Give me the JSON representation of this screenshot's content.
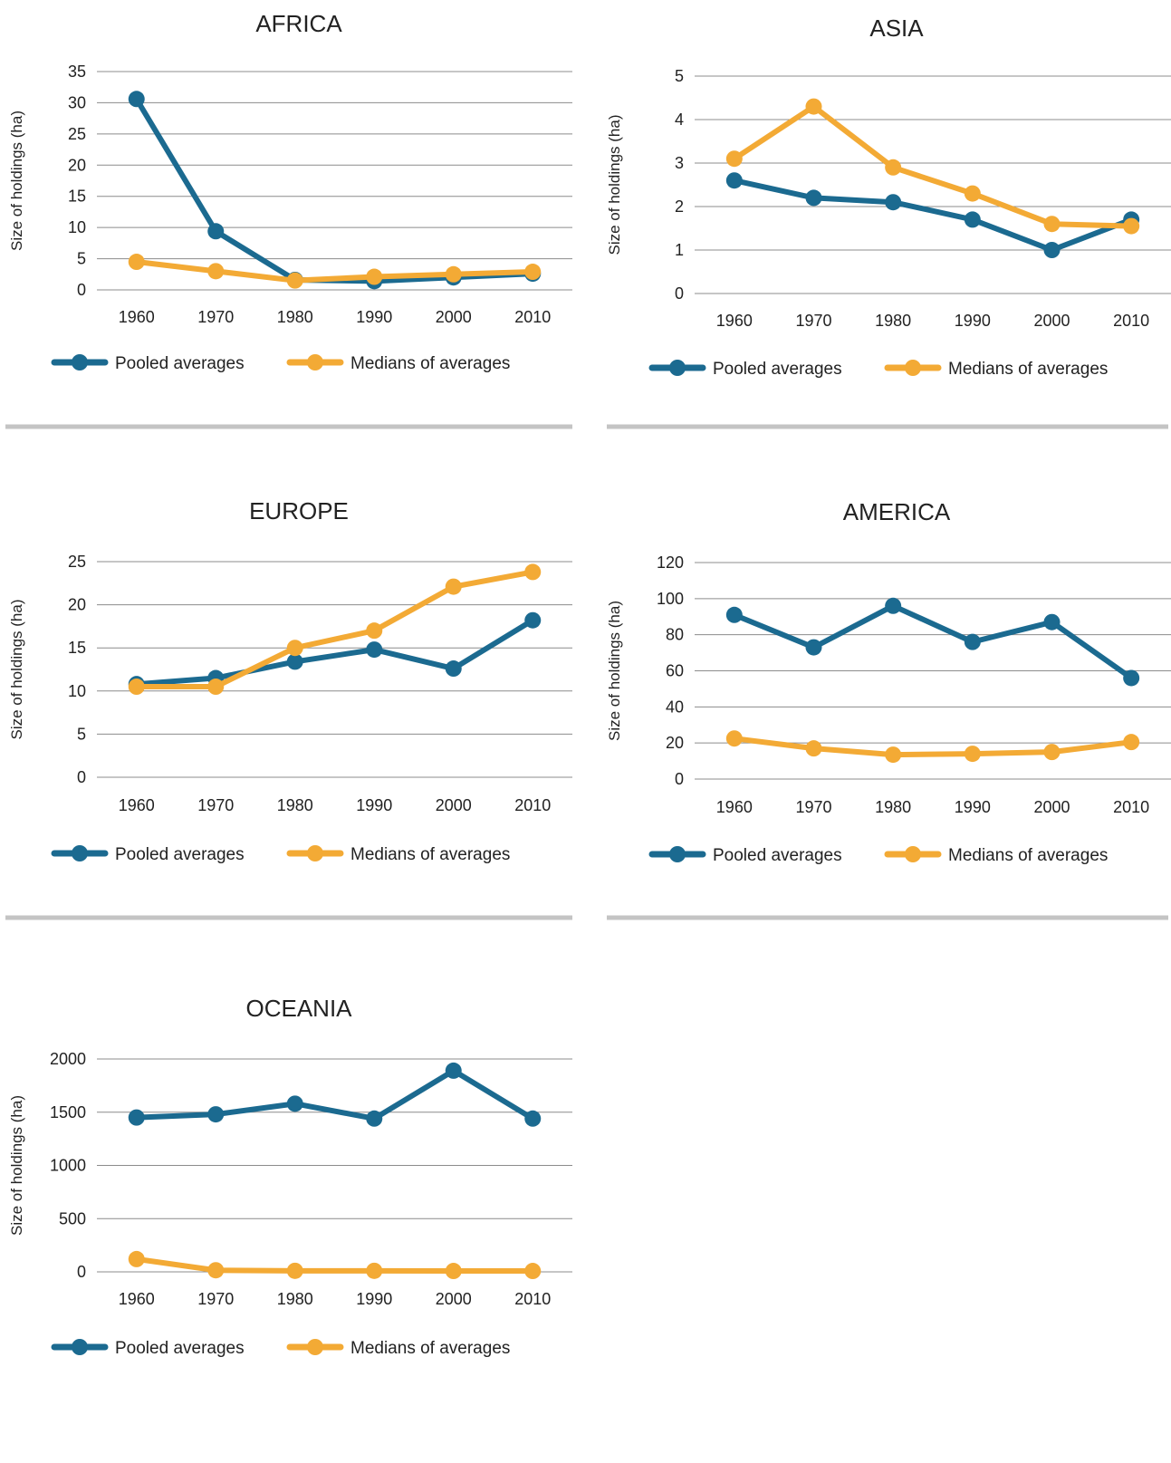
{
  "colors": {
    "pooled": "#1b6a90",
    "medians": "#f3aa35"
  },
  "chart_data": [
    {
      "type": "line",
      "title": "AFRICA",
      "ylabel": "Size of holdings (ha)",
      "x": [
        "1960",
        "1970",
        "1980",
        "1990",
        "2000",
        "2010"
      ],
      "ylim": [
        0,
        35
      ],
      "yticks": [
        "0",
        "5",
        "10",
        "15",
        "20",
        "25",
        "30",
        "35"
      ],
      "series": [
        {
          "name": "Pooled averages",
          "values": [
            30.6,
            9.4,
            1.6,
            1.4,
            2.0,
            2.6
          ]
        },
        {
          "name": "Medians of averages",
          "values": [
            4.5,
            3.0,
            1.5,
            2.1,
            2.5,
            2.9
          ]
        }
      ]
    },
    {
      "type": "line",
      "title": "ASIA",
      "ylabel": "Size of holdings (ha)",
      "x": [
        "1960",
        "1970",
        "1980",
        "1990",
        "2000",
        "2010"
      ],
      "ylim": [
        0,
        5
      ],
      "yticks": [
        "0",
        "1",
        "2",
        "3",
        "4",
        "5"
      ],
      "series": [
        {
          "name": "Pooled averages",
          "values": [
            2.6,
            2.2,
            2.1,
            1.7,
            1.0,
            1.7
          ]
        },
        {
          "name": "Medians of averages",
          "values": [
            3.1,
            4.3,
            2.9,
            2.3,
            1.6,
            1.55
          ]
        }
      ]
    },
    {
      "type": "line",
      "title": "EUROPE",
      "ylabel": "Size of holdings (ha)",
      "x": [
        "1960",
        "1970",
        "1980",
        "1990",
        "2000",
        "2010"
      ],
      "ylim": [
        0,
        25
      ],
      "yticks": [
        "0",
        "5",
        "10",
        "15",
        "20",
        "25"
      ],
      "series": [
        {
          "name": "Pooled averages",
          "values": [
            10.8,
            11.5,
            13.4,
            14.8,
            12.6,
            18.2
          ]
        },
        {
          "name": "Medians of averages",
          "values": [
            10.5,
            10.5,
            15.0,
            17.0,
            22.1,
            23.8
          ]
        }
      ]
    },
    {
      "type": "line",
      "title": "AMERICA",
      "ylabel": "Size of holdings (ha)",
      "x": [
        "1960",
        "1970",
        "1980",
        "1990",
        "2000",
        "2010"
      ],
      "ylim": [
        0,
        120
      ],
      "yticks": [
        "0",
        "20",
        "40",
        "60",
        "80",
        "100",
        "120"
      ],
      "series": [
        {
          "name": "Pooled averages",
          "values": [
            91,
            73,
            96,
            76,
            87,
            56
          ]
        },
        {
          "name": "Medians of averages",
          "values": [
            22.5,
            17,
            13.5,
            14,
            15,
            20.5
          ]
        }
      ]
    },
    {
      "type": "line",
      "title": "OCEANIA",
      "ylabel": "Size of holdings (ha)",
      "x": [
        "1960",
        "1970",
        "1980",
        "1990",
        "2000",
        "2010"
      ],
      "ylim": [
        0,
        2000
      ],
      "yticks": [
        "0",
        "500",
        "1000",
        "1500",
        "2000"
      ],
      "series": [
        {
          "name": "Pooled averages",
          "values": [
            1450,
            1480,
            1580,
            1440,
            1890,
            1440
          ]
        },
        {
          "name": "Medians of averages",
          "values": [
            120,
            15,
            10,
            10,
            8,
            8
          ]
        }
      ]
    }
  ]
}
